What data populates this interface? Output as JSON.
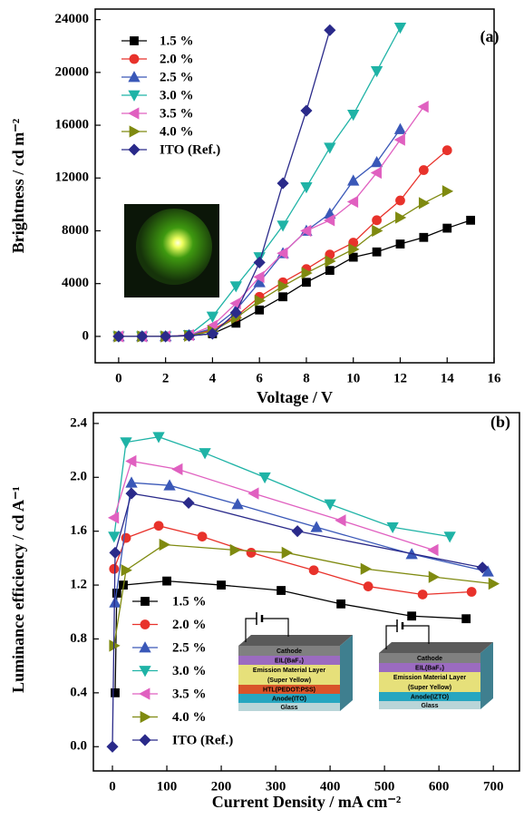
{
  "chart_data": [
    {
      "type": "line",
      "label": "(a)",
      "xlabel": "Voltage / V",
      "ylabel": "Brightness  / cd m⁻²",
      "xlim": [
        -1,
        16
      ],
      "ylim": [
        -2000,
        24800
      ],
      "xticks": [
        0,
        2,
        4,
        6,
        8,
        10,
        12,
        14,
        16
      ],
      "yticks": [
        0,
        4000,
        8000,
        12000,
        16000,
        20000,
        24000
      ],
      "legend": "upper left",
      "series": [
        {
          "name": "1.5 %",
          "color": "#000000",
          "marker": "square",
          "x": [
            0,
            1,
            2,
            3,
            4,
            5,
            6,
            7,
            8,
            9,
            10,
            11,
            12,
            13,
            14,
            15
          ],
          "values": [
            0,
            0,
            0,
            50,
            200,
            1000,
            2000,
            3000,
            4100,
            5000,
            6000,
            6400,
            7000,
            7500,
            8200,
            8800
          ]
        },
        {
          "name": "2.0 %",
          "color": "#e8322b",
          "marker": "circle",
          "x": [
            0,
            1,
            2,
            3,
            4,
            5,
            6,
            7,
            8,
            9,
            10,
            11,
            12,
            13,
            14
          ],
          "values": [
            0,
            0,
            0,
            80,
            500,
            1500,
            3000,
            4100,
            5100,
            6200,
            7100,
            8800,
            10300,
            12600,
            14100
          ]
        },
        {
          "name": "2.5 %",
          "color": "#3a58b8",
          "marker": "up",
          "x": [
            0,
            1,
            2,
            3,
            4,
            5,
            6,
            7,
            8,
            9,
            10,
            11,
            12
          ],
          "values": [
            0,
            0,
            0,
            100,
            600,
            2000,
            4100,
            6300,
            8000,
            9300,
            11800,
            13200,
            15700
          ]
        },
        {
          "name": "3.0 %",
          "color": "#1fb3a6",
          "marker": "down",
          "x": [
            0,
            1,
            2,
            3,
            4,
            5,
            6,
            7,
            8,
            9,
            10,
            11,
            12
          ],
          "values": [
            0,
            0,
            0,
            100,
            1500,
            3800,
            6000,
            8400,
            11300,
            14300,
            16800,
            20100,
            23400
          ]
        },
        {
          "name": "3.5 %",
          "color": "#e060c0",
          "marker": "left",
          "x": [
            0,
            1,
            2,
            3,
            4,
            5,
            6,
            7,
            8,
            9,
            10,
            11,
            12,
            13
          ],
          "values": [
            0,
            0,
            0,
            100,
            800,
            2500,
            4500,
            6300,
            8000,
            8800,
            10200,
            12400,
            14900,
            17400
          ]
        },
        {
          "name": "4.0 %",
          "color": "#7f8a10",
          "marker": "right",
          "x": [
            0,
            1,
            2,
            3,
            4,
            5,
            6,
            7,
            8,
            9,
            10,
            11,
            12,
            13,
            14
          ],
          "values": [
            0,
            0,
            0,
            50,
            400,
            1400,
            2700,
            3800,
            4800,
            5700,
            6600,
            8000,
            9000,
            10100,
            11000
          ]
        },
        {
          "name": "ITO (Ref.)",
          "color": "#2a2a8a",
          "marker": "diamond",
          "x": [
            0,
            1,
            2,
            3,
            4,
            5,
            6,
            7,
            8,
            9
          ],
          "values": [
            0,
            0,
            0,
            50,
            200,
            1800,
            5600,
            11600,
            17100,
            23200
          ]
        }
      ]
    },
    {
      "type": "line",
      "label": "(b)",
      "xlabel": "Current Density / mA cm⁻²",
      "ylabel": "Luminance efficiency / cd A⁻¹",
      "xlim": [
        -35,
        748
      ],
      "ylim": [
        -0.18,
        2.48
      ],
      "xticks": [
        0,
        100,
        200,
        300,
        400,
        500,
        600,
        700
      ],
      "yticks": [
        {
          "value": 0,
          "label": "0.0"
        },
        0.4,
        0.8,
        1.2,
        1.6,
        {
          "value": 2,
          "label": "2.0"
        },
        2.4
      ],
      "legend": "lower left",
      "series": [
        {
          "name": "1.5 %",
          "color": "#000000",
          "marker": "square",
          "x": [
            5,
            8,
            20,
            100,
            200,
            310,
            420,
            550,
            650
          ],
          "values": [
            0.4,
            1.14,
            1.2,
            1.23,
            1.2,
            1.16,
            1.06,
            0.97,
            0.95
          ]
        },
        {
          "name": "2.0 %",
          "color": "#e8322b",
          "marker": "circle",
          "x": [
            3,
            25,
            85,
            165,
            255,
            370,
            470,
            570,
            660
          ],
          "values": [
            1.32,
            1.55,
            1.64,
            1.56,
            1.44,
            1.31,
            1.19,
            1.13,
            1.15
          ]
        },
        {
          "name": "2.5 %",
          "color": "#3a58b8",
          "marker": "up",
          "x": [
            5,
            35,
            105,
            230,
            375,
            550,
            690
          ],
          "values": [
            1.07,
            1.96,
            1.94,
            1.8,
            1.63,
            1.43,
            1.3
          ]
        },
        {
          "name": "3.0 %",
          "color": "#1fb3a6",
          "marker": "down",
          "x": [
            3,
            25,
            85,
            170,
            280,
            400,
            515,
            620
          ],
          "values": [
            1.56,
            2.26,
            2.3,
            2.18,
            2.0,
            1.8,
            1.63,
            1.56
          ]
        },
        {
          "name": "3.5 %",
          "color": "#e060c0",
          "marker": "left",
          "x": [
            3,
            35,
            120,
            260,
            420,
            590
          ],
          "values": [
            1.7,
            2.12,
            2.06,
            1.88,
            1.68,
            1.46
          ]
        },
        {
          "name": "4.0 %",
          "color": "#7f8a10",
          "marker": "right",
          "x": [
            3,
            25,
            95,
            225,
            320,
            465,
            590,
            700
          ],
          "values": [
            0.75,
            1.31,
            1.5,
            1.46,
            1.44,
            1.32,
            1.26,
            1.21
          ]
        },
        {
          "name": "ITO (Ref.)",
          "color": "#2a2a8a",
          "marker": "diamond",
          "x": [
            0,
            5,
            35,
            140,
            340,
            680
          ],
          "values": [
            0.0,
            1.44,
            1.88,
            1.81,
            1.6,
            1.33
          ]
        }
      ],
      "inset_layers": [
        [
          "Cathode",
          "EIL(BaF₂)",
          "Emission Material Layer",
          "(Super Yellow)",
          "HTL(PEDOT:PSS)",
          "Anode(ITO)",
          "Glass"
        ],
        [
          "Cathode",
          "EIL(BaF₂)",
          "Emission Material Layer",
          "(Super Yellow)",
          "Anode(IZTO)",
          "Glass"
        ]
      ]
    }
  ]
}
